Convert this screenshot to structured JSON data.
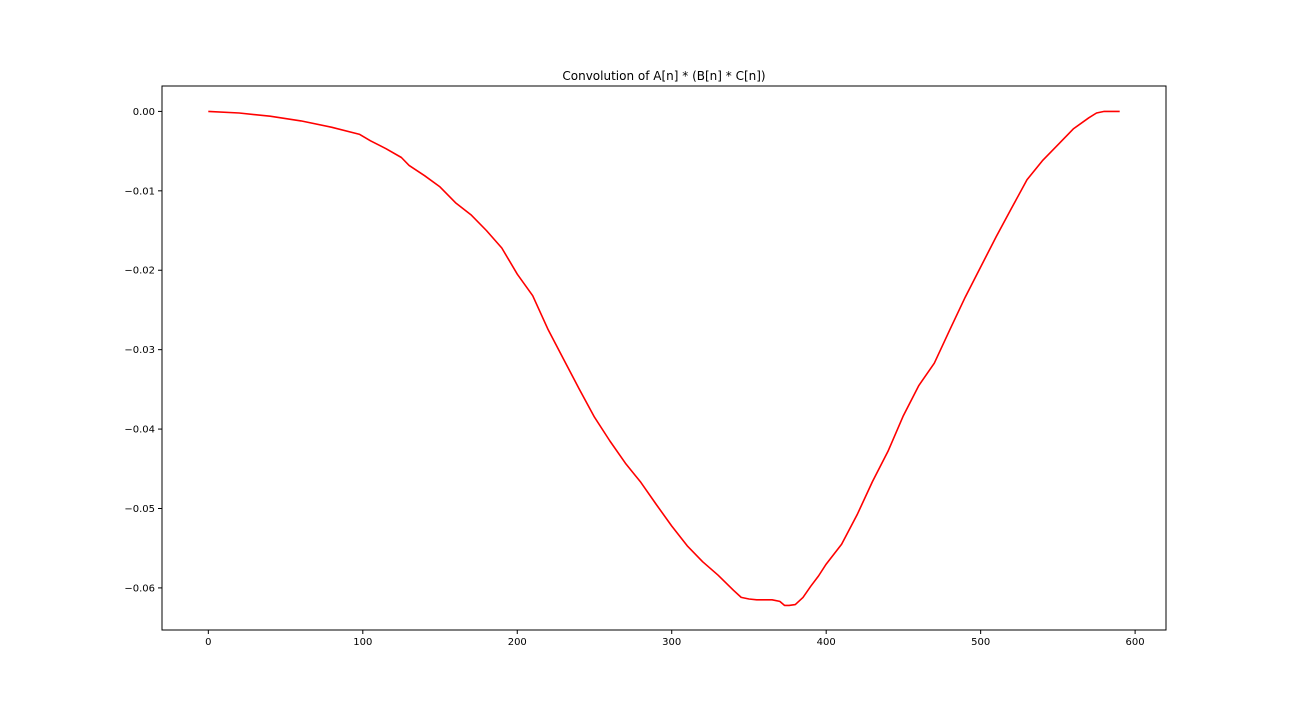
{
  "chart_data": {
    "type": "line",
    "title": "Convolution of A[n] * (B[n] * C[n])",
    "xlabel": "",
    "ylabel": "",
    "xlim": [
      -30,
      620
    ],
    "ylim": [
      -0.0653,
      0.0032
    ],
    "xticks": [
      0,
      100,
      200,
      300,
      400,
      500,
      600
    ],
    "xtick_labels": [
      "0",
      "100",
      "200",
      "300",
      "400",
      "500",
      "600"
    ],
    "yticks": [
      0.0,
      -0.01,
      -0.02,
      -0.03,
      -0.04,
      -0.05,
      -0.06
    ],
    "ytick_labels": [
      "0.00",
      "−0.01",
      "−0.02",
      "−0.03",
      "−0.04",
      "−0.05",
      "−0.06"
    ],
    "grid": false,
    "legend": "none",
    "series": [
      {
        "color": "#ff0000",
        "x": [
          0,
          20,
          40,
          60,
          80,
          98,
          105,
          115,
          125,
          130,
          140,
          150,
          160,
          170,
          180,
          190,
          200,
          210,
          220,
          230,
          240,
          250,
          260,
          270,
          280,
          290,
          300,
          310,
          320,
          330,
          340,
          345,
          350,
          355,
          360,
          365,
          370,
          373,
          376,
          380,
          385,
          390,
          395,
          400,
          410,
          420,
          430,
          440,
          450,
          460,
          470,
          480,
          490,
          500,
          510,
          520,
          530,
          540,
          550,
          560,
          570,
          575,
          580,
          585,
          590
        ],
        "y": [
          0.0,
          -0.0002,
          -0.0006,
          -0.0012,
          -0.002,
          -0.0029,
          -0.0037,
          -0.0047,
          -0.0058,
          -0.0068,
          -0.0081,
          -0.0095,
          -0.0115,
          -0.013,
          -0.015,
          -0.0172,
          -0.0205,
          -0.0232,
          -0.0275,
          -0.0312,
          -0.0349,
          -0.0385,
          -0.0415,
          -0.0443,
          -0.0467,
          -0.0495,
          -0.0522,
          -0.0547,
          -0.0567,
          -0.0584,
          -0.0603,
          -0.0612,
          -0.0614,
          -0.0615,
          -0.0615,
          -0.0615,
          -0.0617,
          -0.0622,
          -0.0622,
          -0.0621,
          -0.0612,
          -0.0598,
          -0.0585,
          -0.057,
          -0.0545,
          -0.0508,
          -0.0466,
          -0.0428,
          -0.0383,
          -0.0345,
          -0.0317,
          -0.0275,
          -0.0234,
          -0.0196,
          -0.0158,
          -0.0122,
          -0.0086,
          -0.0062,
          -0.0042,
          -0.0022,
          -0.0008,
          -0.0002,
          0.0,
          0.0,
          0.0
        ]
      }
    ]
  }
}
